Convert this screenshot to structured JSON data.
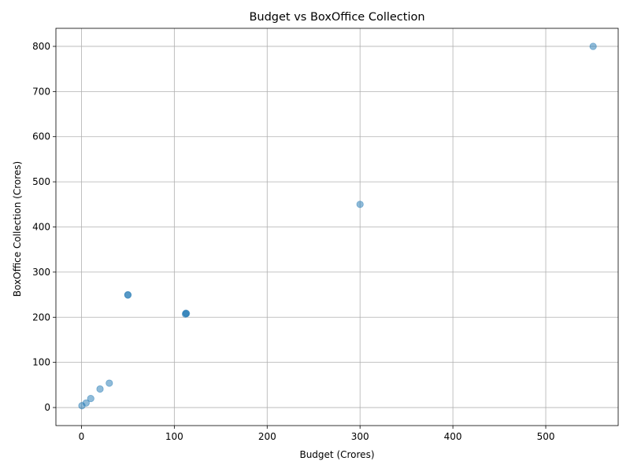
{
  "chart_data": {
    "type": "scatter",
    "title": "Budget vs BoxOffice Collection",
    "xlabel": "Budget (Crores)",
    "ylabel": "BoxOffice Collection (Crores)",
    "xlim": [
      -27.5,
      578.0
    ],
    "ylim": [
      -40,
      840
    ],
    "xticks": [
      0,
      100,
      200,
      300,
      400,
      500
    ],
    "yticks": [
      0,
      100,
      200,
      300,
      400,
      500,
      600,
      700,
      800
    ],
    "grid": true,
    "marker_color": "#1f77b4",
    "marker_alpha": 0.5,
    "points": [
      {
        "x": 0.5,
        "y": 4
      },
      {
        "x": 5,
        "y": 10
      },
      {
        "x": 10,
        "y": 20
      },
      {
        "x": 20,
        "y": 41
      },
      {
        "x": 30,
        "y": 54
      },
      {
        "x": 50,
        "y": 249
      },
      {
        "x": 50,
        "y": 250
      },
      {
        "x": 112,
        "y": 207
      },
      {
        "x": 113,
        "y": 208
      },
      {
        "x": 112.5,
        "y": 209
      },
      {
        "x": 300,
        "y": 450
      },
      {
        "x": 551,
        "y": 800
      }
    ]
  }
}
